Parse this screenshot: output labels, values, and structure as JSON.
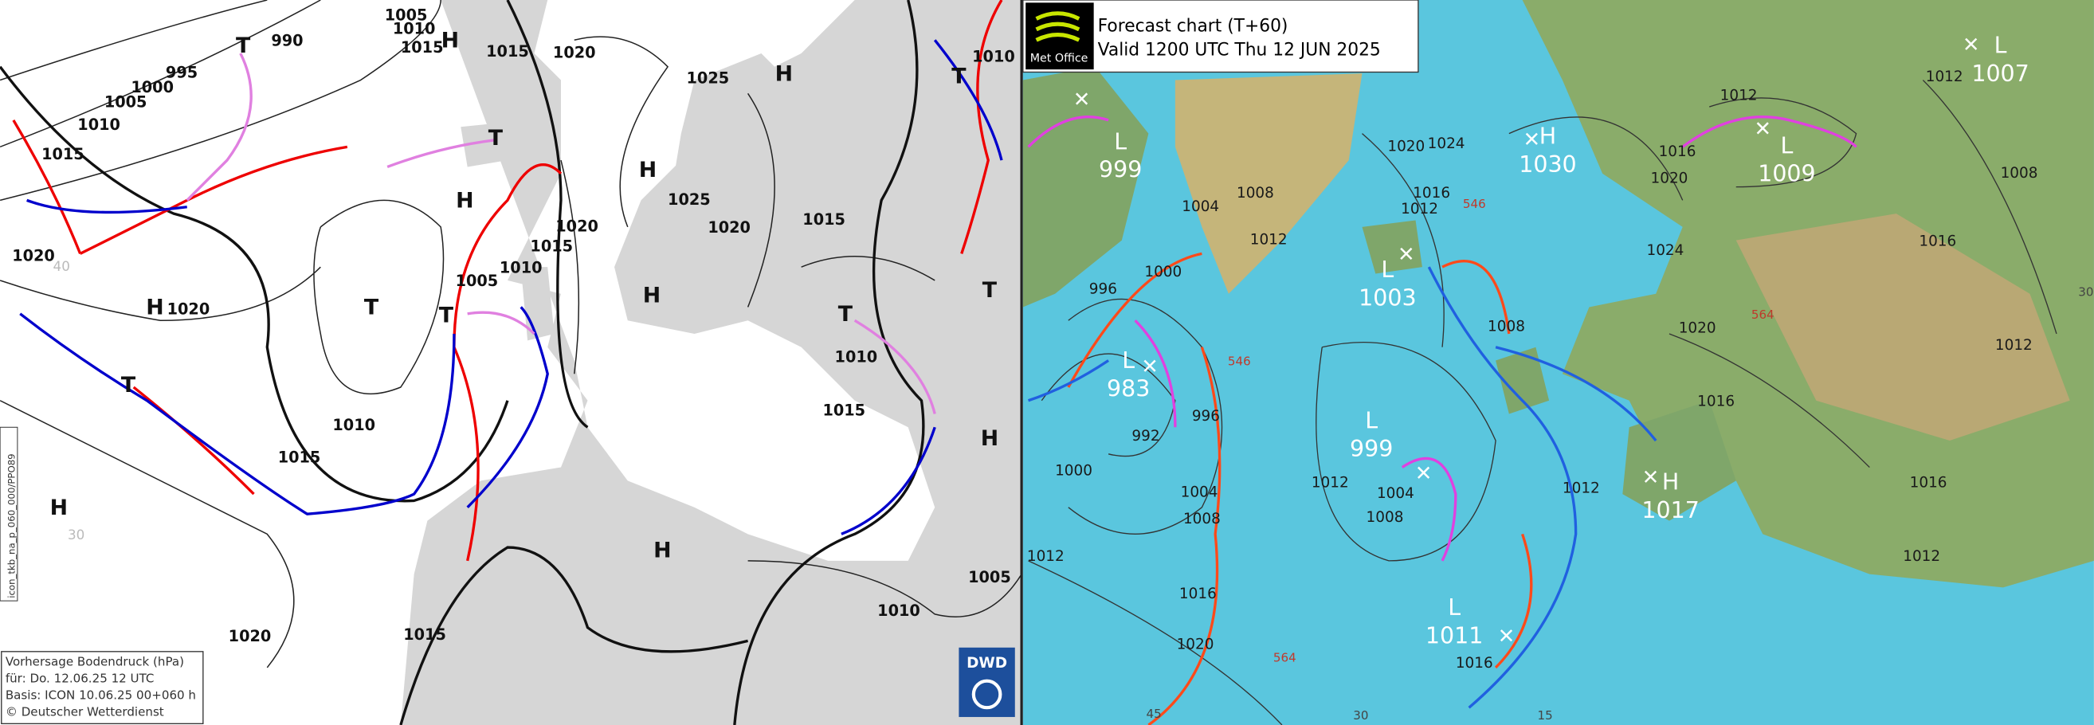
{
  "dwd": {
    "info": [
      "Vorhersage Bodendruck (hPa)",
      "für:  Do. 12.06.25  12 UTC",
      "Basis: ICON  10.06.25 00+060 h",
      "© Deutscher Wetterdienst"
    ],
    "run_id": "icon_tkb_na_p_060_000/PPO89",
    "logo": "DWD",
    "pressure_labels": [
      995,
      990,
      1000,
      1005,
      1010,
      1015,
      1020,
      1005,
      1010,
      1015,
      1015,
      1020,
      1025,
      1025,
      1020,
      1020,
      1015,
      1010,
      1005,
      1015,
      1010,
      1015,
      1010,
      1015,
      1020,
      1015,
      1010,
      1005,
      1010,
      1020
    ],
    "systems": [
      "T",
      "H",
      "H",
      "T",
      "H",
      "H",
      "T",
      "H",
      "T",
      "T",
      "H",
      "T",
      "T",
      "T",
      "H",
      "H",
      "H"
    ],
    "grid_labels": [
      "40",
      "30"
    ]
  },
  "metoffice": {
    "title": "Forecast chart (T+60)",
    "valid": "Valid 1200 UTC Thu 12 JUN 2025",
    "logo": "Met Office",
    "centers": [
      {
        "type": "L",
        "pressure": 999
      },
      {
        "type": "H",
        "pressure": 1030
      },
      {
        "type": "L",
        "pressure": 1009
      },
      {
        "type": "L",
        "pressure": 1007
      },
      {
        "type": "L",
        "pressure": 1003
      },
      {
        "type": "L",
        "pressure": 983
      },
      {
        "type": "L",
        "pressure": 999
      },
      {
        "type": "H",
        "pressure": 1017
      },
      {
        "type": "L",
        "pressure": 1011
      }
    ],
    "isobar_labels": [
      1000,
      996,
      992,
      996,
      1000,
      1004,
      1008,
      1012,
      1016,
      1020,
      1004,
      1008,
      1012,
      1004,
      1008,
      1012,
      1020,
      1024,
      1016,
      1012,
      1008,
      1012,
      1016,
      1020,
      1024,
      1016,
      1016,
      1016,
      1012,
      1012,
      1012,
      1016,
      1020,
      1012,
      1008
    ],
    "thickness_labels": [
      546,
      564,
      546,
      564
    ],
    "grid_labels": [
      "30",
      "45",
      "30",
      "15"
    ]
  }
}
